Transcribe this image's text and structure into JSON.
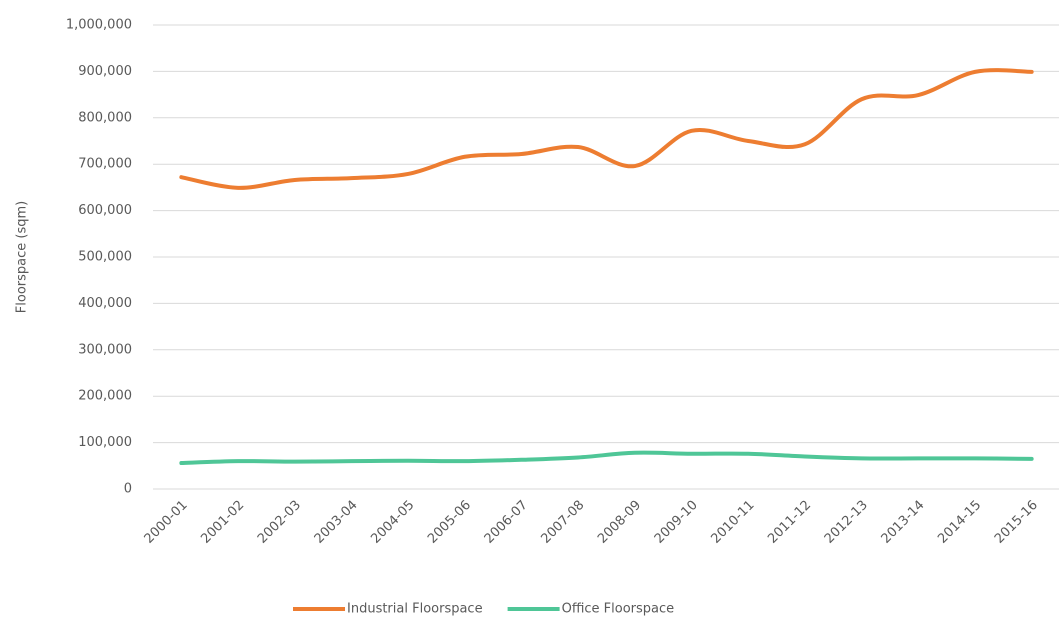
{
  "chart_data": {
    "type": "line",
    "y_label": "Floorspace (sqm)",
    "categories": [
      "2000-01",
      "2001-02",
      "2002-03",
      "2003-04",
      "2004-05",
      "2005-06",
      "2006-07",
      "2007-08",
      "2008-09",
      "2009-10",
      "2010-11",
      "2011-12",
      "2012-13",
      "2013-14",
      "2014-15",
      "2015-16"
    ],
    "series": [
      {
        "name": "Industrial Floorspace",
        "color": "#ed7d31",
        "values": [
          672000,
          649000,
          666000,
          670000,
          679000,
          716000,
          722000,
          737000,
          696000,
          772000,
          750000,
          743000,
          840000,
          849000,
          899000,
          899000
        ]
      },
      {
        "name": "Office Floorspace",
        "color": "#4fc697",
        "values": [
          56000,
          60000,
          59000,
          60000,
          61000,
          60000,
          63000,
          68000,
          78000,
          76000,
          76000,
          70000,
          66000,
          66000,
          66000,
          65000
        ]
      }
    ],
    "ylim": [
      0,
      1000000
    ],
    "yticks": [
      0,
      {
        "value": 100000,
        "label": "100,000"
      },
      {
        "value": 200000,
        "label": "200,000"
      },
      {
        "value": 300000,
        "label": "300,000"
      },
      {
        "value": 400000,
        "label": "400,000"
      },
      {
        "value": 500000,
        "label": "500,000"
      },
      {
        "value": 600000,
        "label": "600,000"
      },
      {
        "value": 700000,
        "label": "700,000"
      },
      {
        "value": 800000,
        "label": "800,000"
      },
      {
        "value": 900000,
        "label": "900,000"
      },
      {
        "value": 1000000,
        "label": "1,000,000"
      }
    ],
    "grid": true,
    "smooth": true,
    "legend": "bottom"
  }
}
